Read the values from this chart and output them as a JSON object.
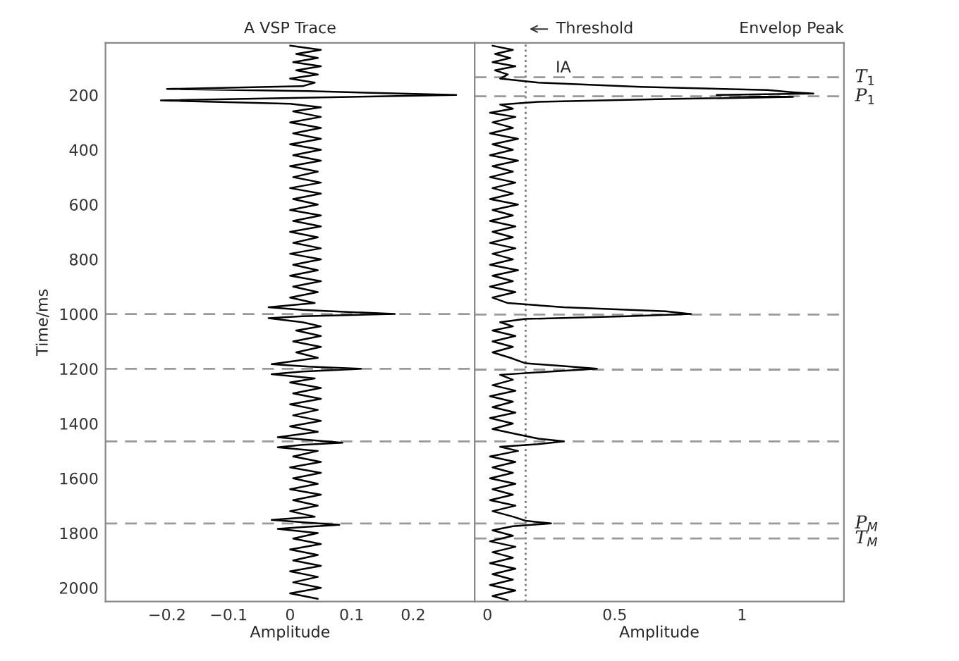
{
  "chart_data": [
    {
      "type": "line",
      "title": "A VSP Trace",
      "xlabel": "Amplitude",
      "ylabel": "Time/ms",
      "xlim": [
        -0.3,
        0.3
      ],
      "xticks": [
        {
          "value": -0.2,
          "label": "−0.2"
        },
        {
          "value": -0.1,
          "label": "−0.1"
        },
        0,
        0.1,
        0.2
      ],
      "ylim": [
        2050,
        10
      ],
      "yticks": [
        200,
        400,
        600,
        800,
        1000,
        1200,
        1400,
        1600,
        1800,
        2000
      ],
      "grid": false,
      "legend": false,
      "series": [
        {
          "color": "#000000",
          "x": [
            0.0,
            0.05,
            0.01,
            0.045,
            0.005,
            0.05,
            0.01,
            0.045,
            0.0,
            0.04,
            0.02,
            -0.2,
            0.03,
            0.27,
            0.02,
            -0.21,
            0.0,
            0.05,
            0.005,
            0.05,
            0.0,
            0.05,
            0.005,
            0.05,
            0.0,
            0.05,
            0.005,
            0.05,
            0.0,
            0.045,
            0.005,
            0.05,
            0.0,
            0.05,
            0.005,
            0.045,
            0.0,
            0.05,
            0.005,
            0.05,
            0.0,
            0.045,
            0.005,
            0.05,
            0.0,
            0.05,
            0.005,
            0.045,
            0.0,
            0.05,
            0.005,
            0.045,
            0.0,
            0.04,
            -0.035,
            0.02,
            0.17,
            0.02,
            -0.035,
            0.02,
            0.05,
            0.01,
            0.05,
            0.005,
            0.05,
            0.01,
            0.045,
            -0.03,
            0.03,
            0.115,
            0.02,
            -0.03,
            0.04,
            0.0,
            0.05,
            0.005,
            0.05,
            0.0,
            0.045,
            0.005,
            0.05,
            0.0,
            0.045,
            -0.02,
            0.03,
            0.085,
            0.02,
            -0.02,
            0.045,
            0.005,
            0.05,
            0.0,
            0.05,
            0.005,
            0.045,
            0.0,
            0.05,
            0.005,
            0.045,
            0.0,
            0.04,
            -0.03,
            0.03,
            0.08,
            0.02,
            -0.02,
            0.045,
            0.005,
            0.05,
            0.0,
            0.045,
            0.005,
            0.05,
            0.0,
            0.045,
            0.005,
            0.05,
            0.0,
            0.045
          ],
          "values": [
            20,
            35,
            50,
            65,
            80,
            95,
            110,
            125,
            140,
            155,
            168,
            178,
            186,
            200,
            210,
            220,
            232,
            245,
            260,
            280,
            300,
            320,
            340,
            360,
            380,
            400,
            420,
            440,
            460,
            480,
            500,
            520,
            540,
            560,
            580,
            600,
            620,
            640,
            660,
            680,
            700,
            720,
            740,
            760,
            780,
            800,
            820,
            840,
            860,
            880,
            900,
            920,
            940,
            960,
            975,
            985,
            1000,
            1008,
            1015,
            1030,
            1045,
            1060,
            1080,
            1100,
            1120,
            1140,
            1160,
            1183,
            1192,
            1200,
            1210,
            1220,
            1235,
            1250,
            1270,
            1290,
            1310,
            1330,
            1350,
            1370,
            1390,
            1410,
            1430,
            1450,
            1460,
            1470,
            1478,
            1487,
            1500,
            1520,
            1540,
            1560,
            1580,
            1600,
            1620,
            1640,
            1660,
            1680,
            1700,
            1720,
            1740,
            1752,
            1762,
            1770,
            1778,
            1785,
            1800,
            1820,
            1840,
            1860,
            1880,
            1900,
            1920,
            1940,
            1960,
            1980,
            2000,
            2020,
            2040
          ]
        }
      ],
      "ref_lines": [
        {
          "axis": "y",
          "value": 1000,
          "color": "#999999",
          "line_style": "dashed"
        },
        {
          "axis": "y",
          "value": 1200,
          "color": "#999999",
          "line_style": "dashed"
        },
        {
          "axis": "y",
          "value": 1465,
          "color": "#999999",
          "line_style": "dashed"
        },
        {
          "axis": "y",
          "value": 1765,
          "color": "#999999",
          "line_style": "dashed"
        }
      ]
    },
    {
      "type": "line",
      "title": "Envelop Peak",
      "xlabel": "Amplitude",
      "xlim": [
        -0.05,
        1.4
      ],
      "xticks": [
        0,
        0.5,
        1
      ],
      "ylim": [
        2050,
        10
      ],
      "yticks": [
        200,
        400,
        600,
        800,
        1000,
        1200,
        1400,
        1600,
        1800,
        2000
      ],
      "tick_labels": "x",
      "grid": false,
      "legend": false,
      "annotations": [
        "IA"
      ],
      "series": [
        {
          "color": "#000000",
          "x": [
            0.02,
            0.1,
            0.03,
            0.09,
            0.02,
            0.11,
            0.03,
            0.08,
            0.05,
            0.2,
            0.6,
            1.1,
            1.2,
            1.28,
            0.9,
            1.2,
            0.7,
            0.2,
            0.05,
            0.1,
            0.01,
            0.11,
            0.02,
            0.1,
            0.01,
            0.12,
            0.02,
            0.1,
            0.01,
            0.12,
            0.02,
            0.1,
            0.01,
            0.11,
            0.02,
            0.1,
            0.01,
            0.12,
            0.02,
            0.1,
            0.01,
            0.11,
            0.02,
            0.1,
            0.01,
            0.11,
            0.02,
            0.1,
            0.01,
            0.12,
            0.02,
            0.1,
            0.01,
            0.11,
            0.02,
            0.08,
            0.3,
            0.7,
            0.8,
            0.55,
            0.15,
            0.05,
            0.1,
            0.02,
            0.11,
            0.02,
            0.1,
            0.02,
            0.09,
            0.15,
            0.3,
            0.43,
            0.25,
            0.05,
            0.1,
            0.02,
            0.11,
            0.01,
            0.1,
            0.02,
            0.11,
            0.01,
            0.1,
            0.02,
            0.12,
            0.2,
            0.3,
            0.2,
            0.05,
            0.12,
            0.01,
            0.11,
            0.02,
            0.1,
            0.01,
            0.11,
            0.02,
            0.1,
            0.01,
            0.11,
            0.02,
            0.1,
            0.15,
            0.25,
            0.1,
            0.02,
            0.1,
            0.01,
            0.11,
            0.02,
            0.1,
            0.01,
            0.11,
            0.02,
            0.1,
            0.01,
            0.11,
            0.02,
            0.08
          ],
          "values": [
            20,
            35,
            50,
            65,
            80,
            95,
            110,
            125,
            140,
            155,
            170,
            182,
            190,
            195,
            200,
            207,
            215,
            225,
            235,
            250,
            265,
            280,
            300,
            320,
            340,
            360,
            380,
            400,
            420,
            440,
            460,
            480,
            500,
            520,
            540,
            560,
            580,
            600,
            620,
            640,
            660,
            680,
            700,
            720,
            740,
            760,
            780,
            800,
            820,
            840,
            860,
            880,
            900,
            920,
            940,
            960,
            975,
            990,
            1000,
            1008,
            1018,
            1030,
            1045,
            1060,
            1080,
            1100,
            1120,
            1140,
            1160,
            1180,
            1190,
            1200,
            1210,
            1222,
            1240,
            1260,
            1280,
            1300,
            1320,
            1340,
            1360,
            1380,
            1400,
            1420,
            1440,
            1455,
            1465,
            1475,
            1485,
            1500,
            1520,
            1540,
            1560,
            1580,
            1600,
            1620,
            1640,
            1660,
            1680,
            1700,
            1720,
            1740,
            1755,
            1765,
            1775,
            1790,
            1810,
            1830,
            1850,
            1870,
            1890,
            1910,
            1930,
            1950,
            1970,
            1990,
            2010,
            2030,
            2045
          ]
        }
      ],
      "ref_lines": [
        {
          "axis": "x",
          "value": 0.15,
          "label": "Threshold",
          "color": "#777777",
          "line_style": "dotted"
        },
        {
          "axis": "y",
          "value": 135,
          "label": "T$_{1}$",
          "color": "#999999",
          "line_style": "dashed"
        },
        {
          "axis": "y",
          "value": 205,
          "label": "P$_{1}$",
          "color": "#999999",
          "line_style": "dashed"
        },
        {
          "axis": "y",
          "value": 1002,
          "color": "#999999",
          "line_style": "dashed"
        },
        {
          "axis": "y",
          "value": 1203,
          "color": "#999999",
          "line_style": "dashed"
        },
        {
          "axis": "y",
          "value": 1465,
          "color": "#999999",
          "line_style": "dashed"
        },
        {
          "axis": "y",
          "value": 1765,
          "label": "P$_{M}$",
          "color": "#999999",
          "line_style": "dashed"
        },
        {
          "axis": "y",
          "value": 1820,
          "label": "T$_{M}$",
          "color": "#999999",
          "line_style": "dashed"
        }
      ]
    }
  ]
}
